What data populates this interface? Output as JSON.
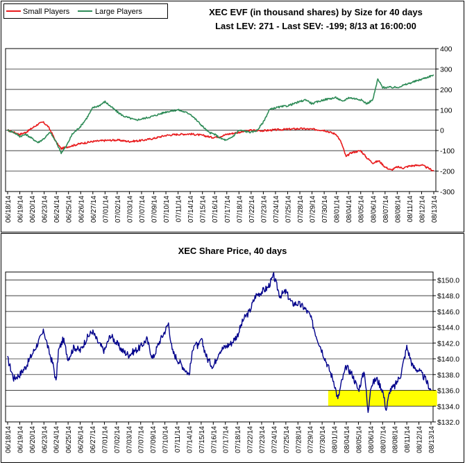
{
  "chart_data": [
    {
      "type": "line",
      "title": "XEC EVF (in thousand shares) by Size for 40 days",
      "subtitle": "Last LEV: 271 - Last SEV: -199; 8/13 at 16:00:00",
      "ylim": [
        -300,
        400
      ],
      "yticks": [
        400,
        300,
        200,
        100,
        0,
        -100,
        -200,
        -300
      ],
      "grid": true,
      "legend": "top-left",
      "x_dates": [
        "06/18/14",
        "06/19/14",
        "06/20/14",
        "06/23/14",
        "06/24/14",
        "06/25/14",
        "06/26/14",
        "06/27/14",
        "07/01/14",
        "07/02/14",
        "07/03/14",
        "07/07/14",
        "07/09/14",
        "07/10/14",
        "07/11/14",
        "07/14/14",
        "07/15/14",
        "07/16/14",
        "07/17/14",
        "07/18/14",
        "07/22/14",
        "07/23/14",
        "07/24/14",
        "07/25/14",
        "07/28/14",
        "07/29/14",
        "07/30/14",
        "08/01/14",
        "08/04/14",
        "08/05/14",
        "08/06/14",
        "08/07/14",
        "08/08/14",
        "08/11/14",
        "08/12/14",
        "08/13/14"
      ],
      "series": [
        {
          "name": "Small Players",
          "color": "#e8191b",
          "points": [
            [
              0,
              0
            ],
            [
              0.5,
              -10
            ],
            [
              1,
              -20
            ],
            [
              1.5,
              -10
            ],
            [
              2,
              10
            ],
            [
              2.5,
              30
            ],
            [
              2.9,
              40
            ],
            [
              3.3,
              20
            ],
            [
              3.6,
              -10
            ],
            [
              4.0,
              -60
            ],
            [
              4.4,
              -90
            ],
            [
              5,
              -80
            ],
            [
              6,
              -65
            ],
            [
              7,
              -55
            ],
            [
              8,
              -50
            ],
            [
              9,
              -48
            ],
            [
              10,
              -55
            ],
            [
              11,
              -50
            ],
            [
              12,
              -40
            ],
            [
              13,
              -25
            ],
            [
              14,
              -20
            ],
            [
              15,
              -18
            ],
            [
              16,
              -25
            ],
            [
              16.8,
              -35
            ],
            [
              17.5,
              -30
            ],
            [
              18,
              -20
            ],
            [
              19,
              -10
            ],
            [
              20,
              0
            ],
            [
              21,
              -2
            ],
            [
              22,
              2
            ],
            [
              23,
              5
            ],
            [
              24,
              8
            ],
            [
              25,
              5
            ],
            [
              26,
              0
            ],
            [
              27,
              -20
            ],
            [
              27.4,
              -60
            ],
            [
              27.8,
              -130
            ],
            [
              28.2,
              -110
            ],
            [
              29,
              -100
            ],
            [
              29.5,
              -135
            ],
            [
              30,
              -160
            ],
            [
              30.5,
              -150
            ],
            [
              31,
              -180
            ],
            [
              31.5,
              -195
            ],
            [
              32,
              -180
            ],
            [
              32.5,
              -185
            ],
            [
              33,
              -175
            ],
            [
              34,
              -170
            ],
            [
              35,
              -199
            ]
          ]
        },
        {
          "name": "Large Players",
          "color": "#2e8b57",
          "points": [
            [
              0,
              0
            ],
            [
              0.5,
              -10
            ],
            [
              1,
              -30
            ],
            [
              1.5,
              -20
            ],
            [
              2,
              -40
            ],
            [
              2.5,
              -60
            ],
            [
              3,
              -40
            ],
            [
              3.5,
              -10
            ],
            [
              4,
              -60
            ],
            [
              4.4,
              -110
            ],
            [
              4.8,
              -80
            ],
            [
              5.3,
              -20
            ],
            [
              6,
              20
            ],
            [
              6.5,
              60
            ],
            [
              7,
              110
            ],
            [
              7.5,
              120
            ],
            [
              8,
              140
            ],
            [
              8.4,
              120
            ],
            [
              9,
              90
            ],
            [
              9.5,
              70
            ],
            [
              10,
              60
            ],
            [
              10.5,
              50
            ],
            [
              11,
              55
            ],
            [
              12,
              70
            ],
            [
              13,
              90
            ],
            [
              14,
              100
            ],
            [
              15,
              80
            ],
            [
              16,
              20
            ],
            [
              16.5,
              -10
            ],
            [
              17,
              -20
            ],
            [
              17.5,
              -40
            ],
            [
              18,
              -50
            ],
            [
              18.5,
              -30
            ],
            [
              19,
              0
            ],
            [
              20,
              -10
            ],
            [
              20.5,
              0
            ],
            [
              21,
              40
            ],
            [
              21.5,
              100
            ],
            [
              22,
              110
            ],
            [
              23,
              120
            ],
            [
              24,
              140
            ],
            [
              24.5,
              150
            ],
            [
              25,
              130
            ],
            [
              26,
              150
            ],
            [
              27,
              160
            ],
            [
              27.5,
              140
            ],
            [
              28,
              160
            ],
            [
              29,
              150
            ],
            [
              29.5,
              130
            ],
            [
              30,
              150
            ],
            [
              30.4,
              250
            ],
            [
              30.8,
              210
            ],
            [
              31,
              210
            ],
            [
              32,
              210
            ],
            [
              33,
              230
            ],
            [
              34,
              250
            ],
            [
              35,
              271
            ]
          ]
        }
      ]
    },
    {
      "type": "line",
      "title": "XEC Share Price, 40 days",
      "ylim": [
        132,
        151
      ],
      "yticks": [
        "$150.0",
        "$148.0",
        "$146.0",
        "$144.0",
        "$142.0",
        "$140.0",
        "$138.0",
        "$136.0",
        "$134.0",
        "$132.0"
      ],
      "ytick_values": [
        150,
        148,
        146,
        144,
        142,
        140,
        138,
        136,
        134,
        132
      ],
      "grid": true,
      "x_dates": [
        "06/18/14",
        "06/19/14",
        "06/20/14",
        "06/23/14",
        "06/24/14",
        "06/25/14",
        "06/26/14",
        "06/27/14",
        "07/01/14",
        "07/02/14",
        "07/03/14",
        "07/07/14",
        "07/09/14",
        "07/10/14",
        "07/11/14",
        "07/14/14",
        "07/15/14",
        "07/16/14",
        "07/17/14",
        "07/18/14",
        "07/22/14",
        "07/23/14",
        "07/24/14",
        "07/25/14",
        "07/28/14",
        "07/29/14",
        "07/30/14",
        "08/01/14",
        "08/04/14",
        "08/05/14",
        "08/06/14",
        "08/07/14",
        "08/08/14",
        "08/11/14",
        "08/12/14",
        "08/13/14"
      ],
      "highlight_band": {
        "y_from": 134,
        "y_to": 136,
        "x_from": 26.5,
        "x_to": 35.5,
        "color": "#ffff00"
      },
      "series": [
        {
          "name": "",
          "color": "#00008b",
          "points": [
            [
              0,
              140
            ],
            [
              0.5,
              137.5
            ],
            [
              1,
              138
            ],
            [
              1.5,
              139
            ],
            [
              2,
              140.5
            ],
            [
              2.5,
              142
            ],
            [
              3,
              143.5
            ],
            [
              3.4,
              141
            ],
            [
              3.8,
              139
            ],
            [
              4,
              137
            ],
            [
              4.2,
              141
            ],
            [
              4.6,
              142.5
            ],
            [
              5,
              140
            ],
            [
              5.5,
              141.5
            ],
            [
              6,
              141
            ],
            [
              6.5,
              142.5
            ],
            [
              7,
              143.5
            ],
            [
              7.5,
              142
            ],
            [
              8,
              141
            ],
            [
              8.5,
              143
            ],
            [
              9,
              142
            ],
            [
              9.5,
              141
            ],
            [
              10,
              140.5
            ],
            [
              10.5,
              141
            ],
            [
              11,
              141.5
            ],
            [
              11.5,
              142.5
            ],
            [
              12,
              140
            ],
            [
              12.5,
              142
            ],
            [
              13,
              143.5
            ],
            [
              13.3,
              144.5
            ],
            [
              13.6,
              141
            ],
            [
              14,
              140
            ],
            [
              14.5,
              139
            ],
            [
              15,
              138
            ],
            [
              15.4,
              142
            ],
            [
              15.8,
              141.5
            ],
            [
              16,
              142.5
            ],
            [
              16.5,
              140
            ],
            [
              17,
              139
            ],
            [
              17.5,
              141
            ],
            [
              18,
              141.5
            ],
            [
              18.5,
              142
            ],
            [
              19,
              143
            ],
            [
              19.5,
              145
            ],
            [
              20,
              146
            ],
            [
              20.5,
              148
            ],
            [
              21,
              148.5
            ],
            [
              21.5,
              149
            ],
            [
              22,
              150.5
            ],
            [
              22.5,
              148
            ],
            [
              23,
              148.5
            ],
            [
              23.5,
              147
            ],
            [
              24,
              147
            ],
            [
              24.5,
              146.5
            ],
            [
              25,
              145.5
            ],
            [
              25.5,
              143
            ],
            [
              26,
              141
            ],
            [
              26.5,
              139
            ],
            [
              27,
              137
            ],
            [
              27.3,
              134.8
            ],
            [
              27.6,
              137
            ],
            [
              28,
              139
            ],
            [
              28.5,
              138
            ],
            [
              29,
              136
            ],
            [
              29.5,
              138.5
            ],
            [
              29.8,
              133
            ],
            [
              30,
              136.5
            ],
            [
              30.5,
              137.5
            ],
            [
              31,
              136
            ],
            [
              31.3,
              133.5
            ],
            [
              31.6,
              136
            ],
            [
              32,
              136.5
            ],
            [
              32.5,
              138
            ],
            [
              33,
              141.5
            ],
            [
              33.5,
              139
            ],
            [
              34,
              138.5
            ],
            [
              34.5,
              137.5
            ],
            [
              35,
              136
            ]
          ]
        }
      ]
    }
  ],
  "legend": {
    "small_label": "Small Players",
    "large_label": "Large Players"
  }
}
